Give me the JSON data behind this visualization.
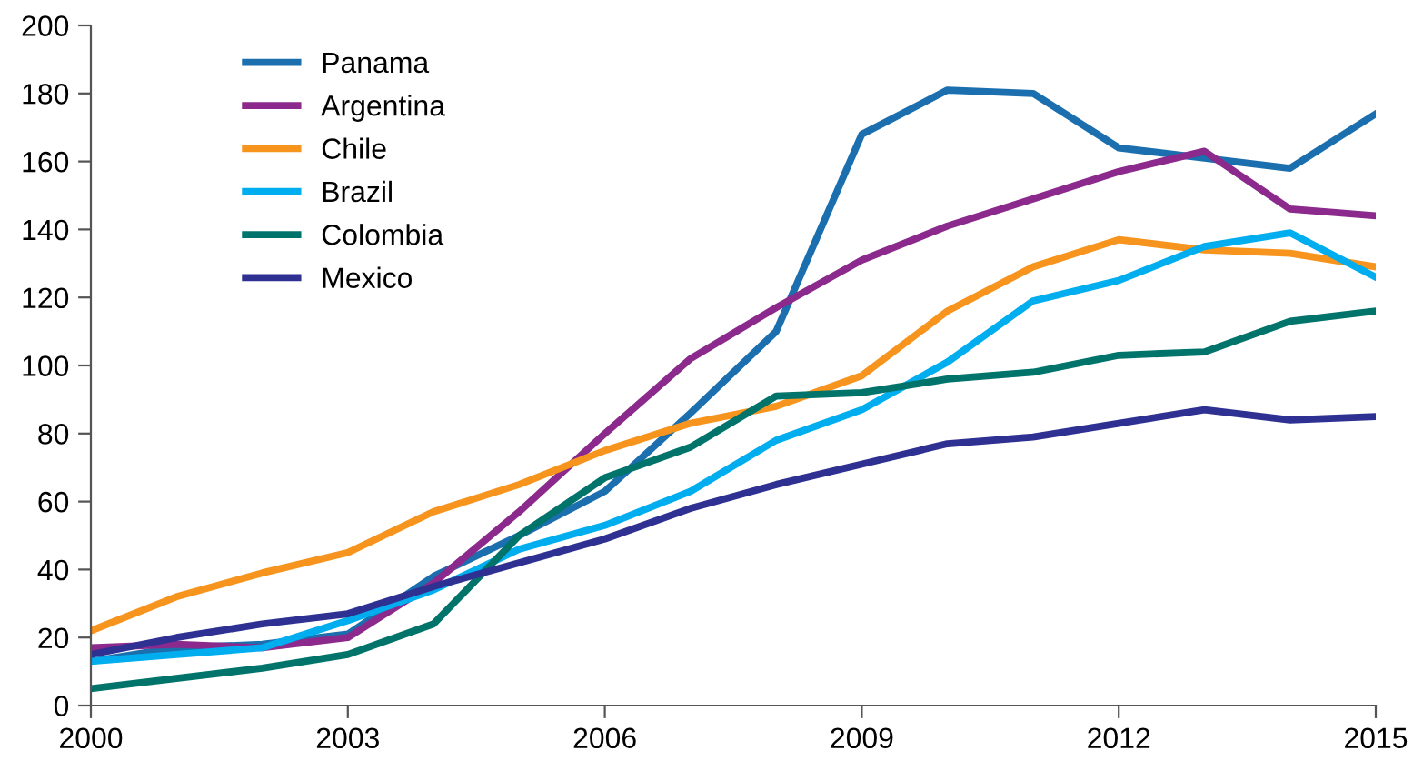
{
  "chart_data": {
    "type": "line",
    "x": [
      2000,
      2001,
      2002,
      2003,
      2004,
      2005,
      2006,
      2007,
      2008,
      2009,
      2010,
      2011,
      2012,
      2013,
      2014,
      2015
    ],
    "series": [
      {
        "name": "Panama",
        "color": "#1b6fae",
        "values": [
          13,
          17,
          18,
          21,
          38,
          50,
          63,
          86,
          110,
          168,
          181,
          180,
          164,
          161,
          158,
          174
        ]
      },
      {
        "name": "Argentina",
        "color": "#8b2a8c",
        "values": [
          17,
          18,
          17,
          20,
          36,
          57,
          80,
          102,
          117,
          131,
          141,
          149,
          157,
          163,
          146,
          144
        ]
      },
      {
        "name": "Chile",
        "color": "#f7941d",
        "values": [
          22,
          32,
          39,
          45,
          57,
          65,
          75,
          83,
          88,
          97,
          116,
          129,
          137,
          134,
          133,
          129
        ]
      },
      {
        "name": "Brazil",
        "color": "#00aeef",
        "values": [
          13,
          15,
          17,
          25,
          34,
          46,
          53,
          63,
          78,
          87,
          101,
          119,
          125,
          135,
          139,
          126
        ]
      },
      {
        "name": "Colombia",
        "color": "#00746b",
        "values": [
          5,
          8,
          11,
          15,
          24,
          50,
          67,
          76,
          91,
          92,
          96,
          98,
          103,
          104,
          113,
          116
        ]
      },
      {
        "name": "Mexico",
        "color": "#2e3192",
        "values": [
          15,
          20,
          24,
          27,
          35,
          42,
          49,
          58,
          65,
          71,
          77,
          79,
          83,
          87,
          84,
          85
        ]
      }
    ],
    "xlim": [
      2000,
      2015
    ],
    "xticks": [
      2000,
      2003,
      2006,
      2009,
      2012,
      2015
    ],
    "ylim": [
      0,
      200
    ],
    "yticks": [
      0,
      20,
      40,
      60,
      80,
      100,
      120,
      140,
      160,
      180,
      200
    ],
    "legend": "top left",
    "grid": false,
    "marker": "none",
    "line_style": "solid"
  }
}
